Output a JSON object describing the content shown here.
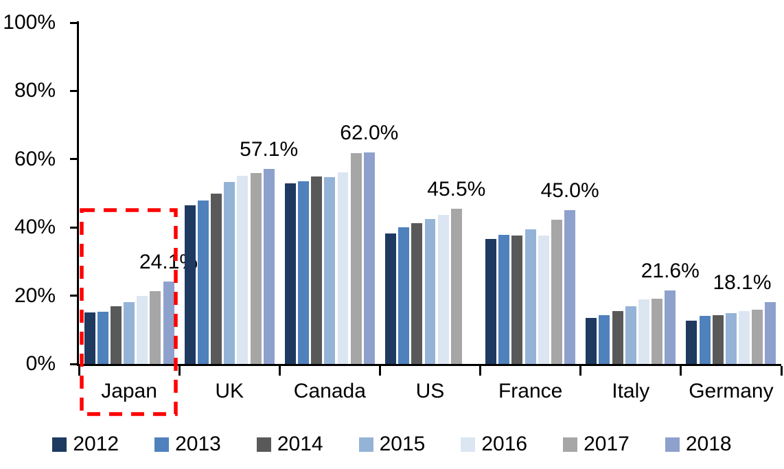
{
  "chart_data": {
    "type": "bar",
    "title": "",
    "xlabel": "",
    "ylabel": "",
    "categories": [
      "Japan",
      "UK",
      "Canada",
      "US",
      "France",
      "Italy",
      "Germany"
    ],
    "series": [
      {
        "name": "2012",
        "color": "#1F3A60",
        "values": [
          15.1,
          46.4,
          52.9,
          38.2,
          36.6,
          13.5,
          12.6
        ]
      },
      {
        "name": "2013",
        "color": "#4F81BD",
        "values": [
          15.3,
          47.9,
          53.5,
          40.0,
          37.8,
          14.2,
          14.1
        ]
      },
      {
        "name": "2014",
        "color": "#595959",
        "values": [
          16.9,
          49.9,
          54.9,
          41.2,
          37.7,
          15.4,
          14.3
        ]
      },
      {
        "name": "2015",
        "color": "#95B3D7",
        "values": [
          18.2,
          53.3,
          54.7,
          42.4,
          39.4,
          16.9,
          14.8
        ]
      },
      {
        "name": "2016",
        "color": "#DCE6F2",
        "values": [
          20.0,
          55.1,
          56.1,
          43.6,
          37.6,
          19.0,
          15.4
        ]
      },
      {
        "name": "2017",
        "color": "#A6A6A6",
        "values": [
          21.3,
          55.9,
          61.7,
          45.5,
          42.3,
          19.2,
          15.9
        ]
      },
      {
        "name": "2018",
        "color": "#8EA0CC",
        "values": [
          24.1,
          57.1,
          62.0,
          null,
          45.0,
          21.6,
          18.1
        ]
      }
    ],
    "data_labels": [
      "24.1%",
      "57.1%",
      "62.0%",
      "45.5%",
      "45.0%",
      "21.6%",
      "18.1%"
    ],
    "y_axis": {
      "min": 0,
      "max": 100,
      "tick_step": 20,
      "tick_labels": [
        "0%",
        "20%",
        "40%",
        "60%",
        "80%",
        "100%"
      ]
    },
    "legend": {
      "position": "bottom",
      "entries": [
        "2012",
        "2013",
        "2014",
        "2015",
        "2016",
        "2017",
        "2018"
      ]
    },
    "grid": false,
    "annotations": {
      "highlight_box": {
        "category": "Japan",
        "color": "#FF0000",
        "style": "dashed"
      }
    },
    "colors": {
      "axis": "#000000",
      "background": "#FFFFFF",
      "highlight": "#FF0000"
    }
  }
}
